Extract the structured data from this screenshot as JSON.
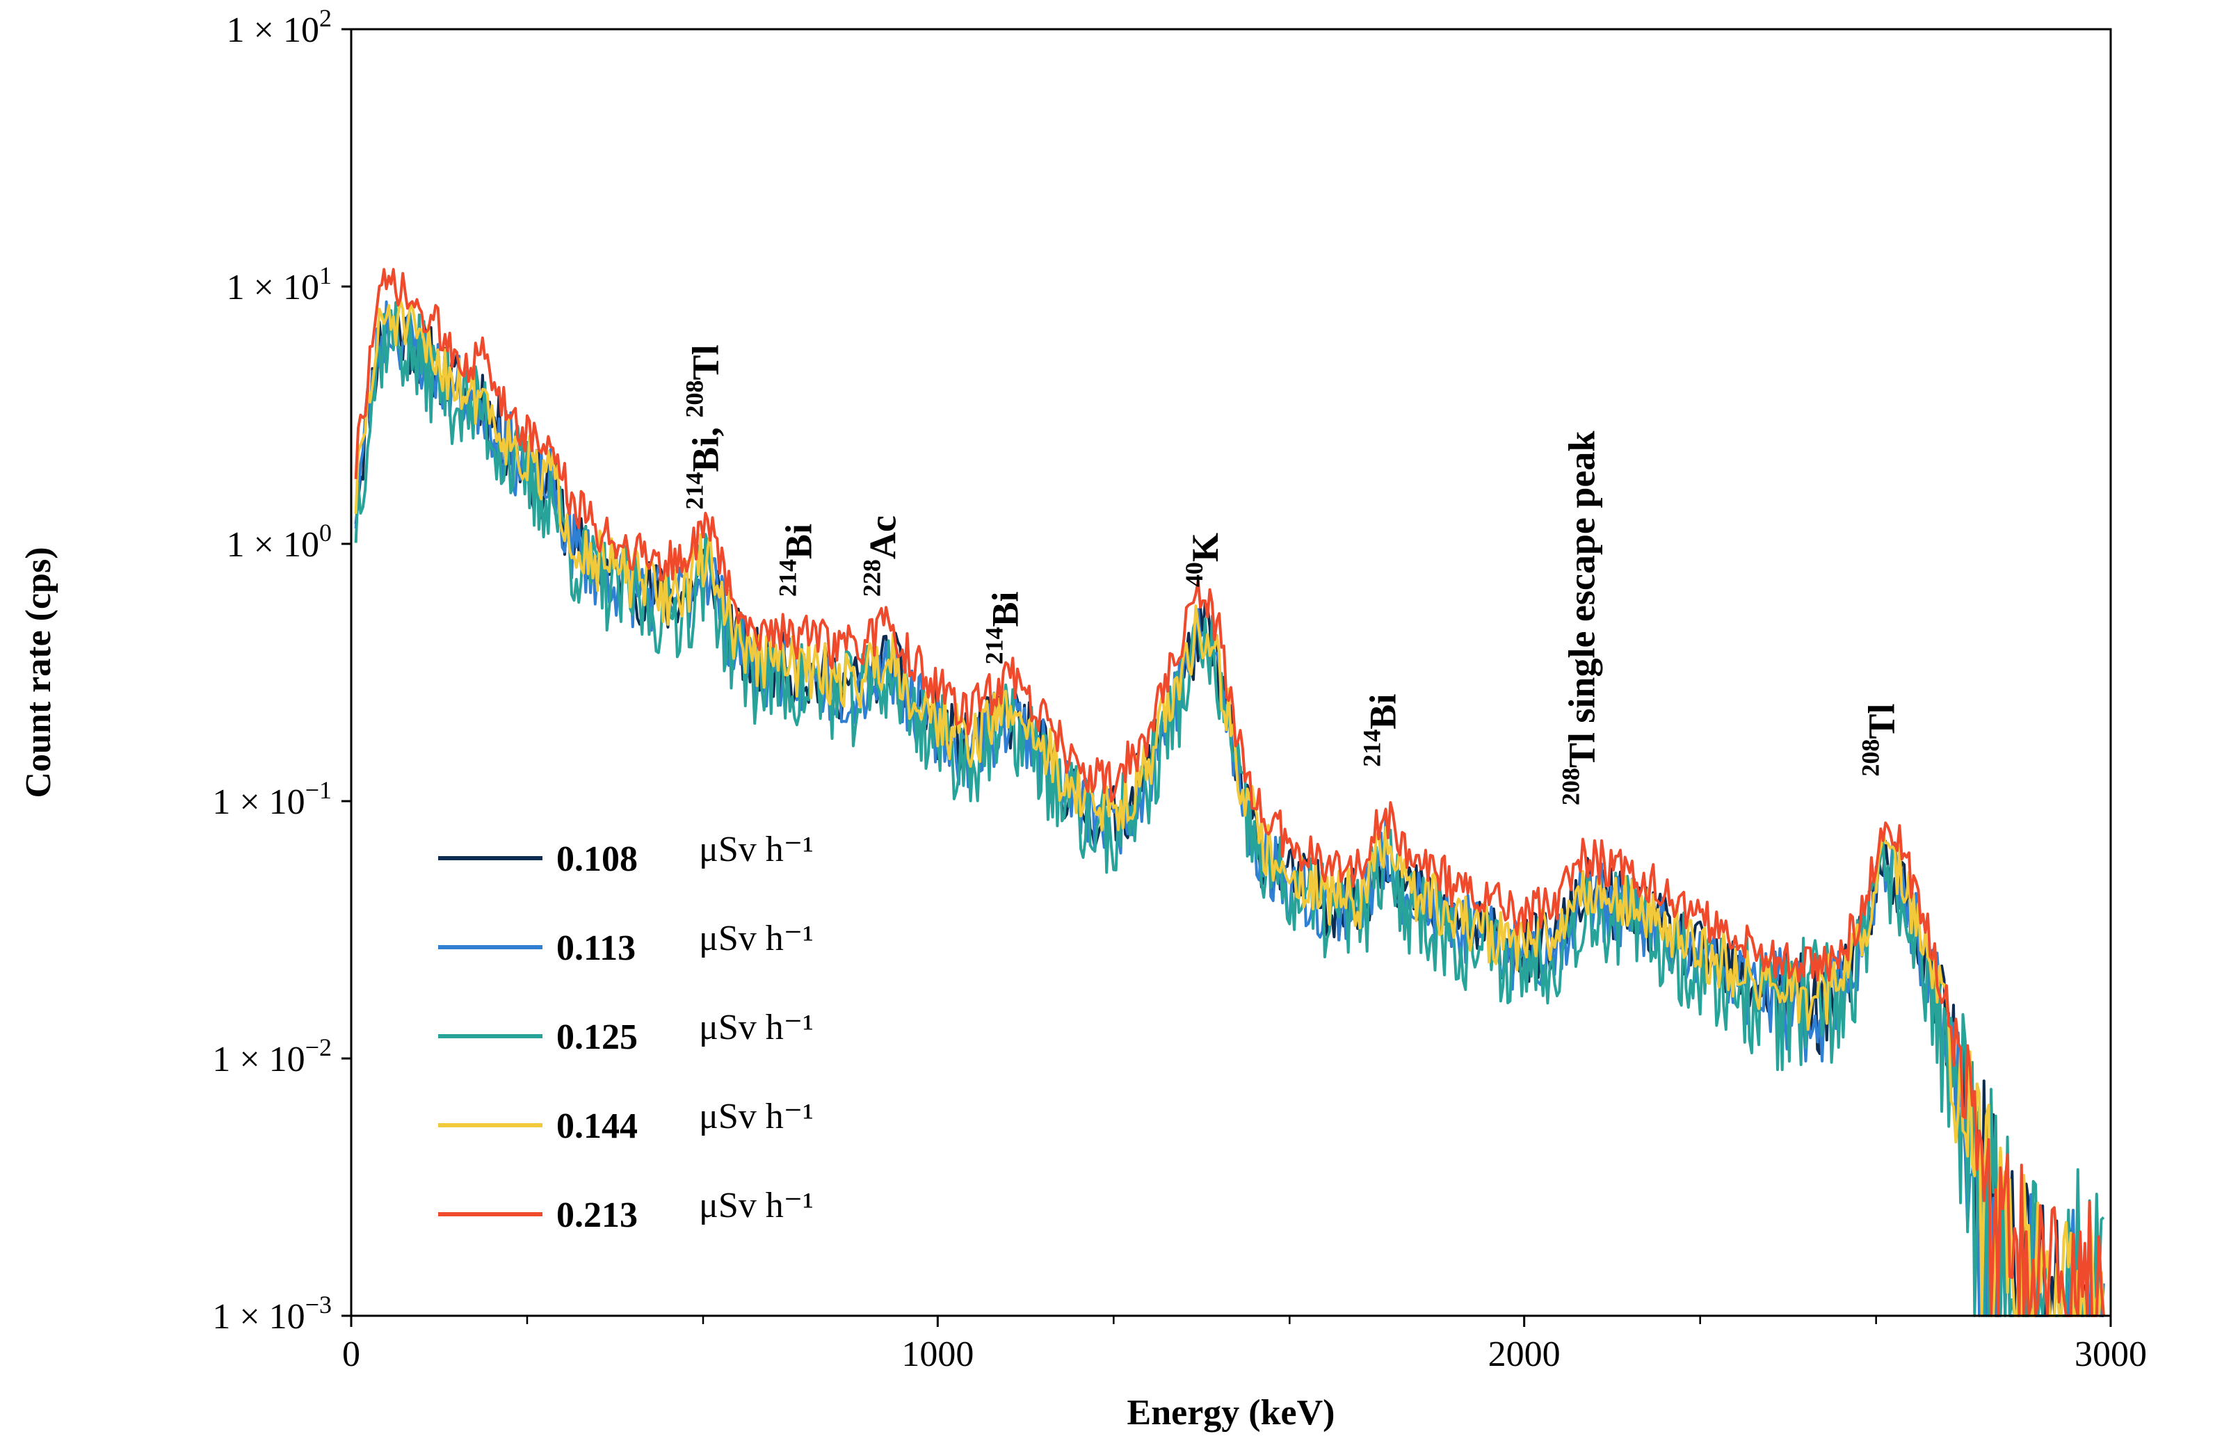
{
  "chart_data": {
    "type": "line",
    "xlabel": "Energy (keV)",
    "ylabel": "Count rate (cps)",
    "xlim": [
      0,
      3000
    ],
    "ylim": [
      0.001,
      100
    ],
    "yscale": "log",
    "grid": false,
    "legend_position": "bottom-left",
    "x_ticks": [
      {
        "value": 0,
        "label": "0"
      },
      {
        "value": 1000,
        "label": "1000"
      },
      {
        "value": 2000,
        "label": "2000"
      },
      {
        "value": 3000,
        "label": "3000"
      }
    ],
    "x_minor_ticks": [
      300,
      600,
      1300,
      1600,
      2300,
      2600
    ],
    "y_ticks": [
      {
        "value": 100,
        "base": "1 × 10",
        "exp": "2"
      },
      {
        "value": 10,
        "base": "1 × 10",
        "exp": "1"
      },
      {
        "value": 1,
        "base": "1 × 10",
        "exp": "0"
      },
      {
        "value": 0.1,
        "base": "1 × 10",
        "exp": "−1"
      },
      {
        "value": 0.01,
        "base": "1 × 10",
        "exp": "−2"
      },
      {
        "value": 0.001,
        "base": "1 × 10",
        "exp": "−3"
      }
    ],
    "unit": "μSv h⁻¹",
    "series": [
      {
        "name": "0.108",
        "color": "#0d2c52",
        "scale": 0.99,
        "noise": 0.14,
        "seed": 11
      },
      {
        "name": "0.113",
        "color": "#2f7fd3",
        "scale": 0.96,
        "noise": 0.15,
        "seed": 23
      },
      {
        "name": "0.125",
        "color": "#27a39a",
        "scale": 0.88,
        "noise": 0.19,
        "seed": 37
      },
      {
        "name": "0.144",
        "color": "#f2c93a",
        "scale": 1.05,
        "noise": 0.12,
        "seed": 51
      },
      {
        "name": "0.213",
        "color": "#ef4a2c",
        "scale": 1.38,
        "noise": 0.09,
        "seed": 73
      }
    ],
    "baseline_spectrum": [
      [
        0,
        0.9
      ],
      [
        10,
        1.6
      ],
      [
        30,
        3.5
      ],
      [
        50,
        6.5
      ],
      [
        60,
        7.5
      ],
      [
        80,
        7.0
      ],
      [
        120,
        5.6
      ],
      [
        160,
        4.6
      ],
      [
        190,
        3.9
      ],
      [
        210,
        3.6
      ],
      [
        222,
        4.0
      ],
      [
        235,
        3.2
      ],
      [
        260,
        2.6
      ],
      [
        290,
        2.1
      ],
      [
        320,
        1.7
      ],
      [
        340,
        1.85
      ],
      [
        355,
        1.4
      ],
      [
        380,
        1.0
      ],
      [
        420,
        0.82
      ],
      [
        480,
        0.7
      ],
      [
        540,
        0.6
      ],
      [
        580,
        0.68
      ],
      [
        600,
        0.85
      ],
      [
        615,
        0.82
      ],
      [
        640,
        0.5
      ],
      [
        680,
        0.35
      ],
      [
        740,
        0.33
      ],
      [
        800,
        0.3
      ],
      [
        860,
        0.28
      ],
      [
        900,
        0.33
      ],
      [
        920,
        0.36
      ],
      [
        950,
        0.26
      ],
      [
        1000,
        0.2
      ],
      [
        1050,
        0.16
      ],
      [
        1100,
        0.2
      ],
      [
        1130,
        0.22
      ],
      [
        1160,
        0.18
      ],
      [
        1200,
        0.13
      ],
      [
        1260,
        0.09
      ],
      [
        1300,
        0.085
      ],
      [
        1350,
        0.12
      ],
      [
        1400,
        0.24
      ],
      [
        1440,
        0.42
      ],
      [
        1460,
        0.45
      ],
      [
        1480,
        0.32
      ],
      [
        1510,
        0.13
      ],
      [
        1550,
        0.065
      ],
      [
        1600,
        0.05
      ],
      [
        1680,
        0.04
      ],
      [
        1720,
        0.04
      ],
      [
        1764,
        0.065
      ],
      [
        1800,
        0.045
      ],
      [
        1900,
        0.032
      ],
      [
        2000,
        0.026
      ],
      [
        2060,
        0.03
      ],
      [
        2103,
        0.045
      ],
      [
        2200,
        0.036
      ],
      [
        2300,
        0.025
      ],
      [
        2400,
        0.019
      ],
      [
        2500,
        0.016
      ],
      [
        2560,
        0.022
      ],
      [
        2600,
        0.045
      ],
      [
        2614,
        0.058
      ],
      [
        2650,
        0.045
      ],
      [
        2700,
        0.018
      ],
      [
        2750,
        0.006
      ],
      [
        2800,
        0.0025
      ],
      [
        2850,
        0.0015
      ],
      [
        2900,
        0.0012
      ],
      [
        2950,
        0.0011
      ],
      [
        3000,
        0.001
      ]
    ],
    "annotations": [
      {
        "energy": 609,
        "value": 1.2,
        "segments": [
          {
            "t": "214",
            "sup": true
          },
          {
            "t": "Bi, ",
            "sup": false
          },
          {
            "t": "208",
            "sup": true
          },
          {
            "t": "Tl",
            "sup": false
          }
        ]
      },
      {
        "energy": 768,
        "value": 0.55,
        "segments": [
          {
            "t": "214",
            "sup": true
          },
          {
            "t": "Bi",
            "sup": false
          }
        ]
      },
      {
        "energy": 911,
        "value": 0.55,
        "segments": [
          {
            "t": "228",
            "sup": true
          },
          {
            "t": "Ac",
            "sup": false
          }
        ]
      },
      {
        "energy": 1120,
        "value": 0.3,
        "segments": [
          {
            "t": "214",
            "sup": true
          },
          {
            "t": "Bi",
            "sup": false
          }
        ]
      },
      {
        "energy": 1461,
        "value": 0.6,
        "segments": [
          {
            "t": "40",
            "sup": true
          },
          {
            "t": "K",
            "sup": false
          }
        ]
      },
      {
        "energy": 1764,
        "value": 0.12,
        "segments": [
          {
            "t": "214",
            "sup": true
          },
          {
            "t": "Bi",
            "sup": false
          }
        ]
      },
      {
        "energy": 2103,
        "value": 0.085,
        "segments": [
          {
            "t": "208",
            "sup": true
          },
          {
            "t": "Tl single escape peak",
            "sup": false
          }
        ]
      },
      {
        "energy": 2614,
        "value": 0.11,
        "segments": [
          {
            "t": "208",
            "sup": true
          },
          {
            "t": "Tl",
            "sup": false
          }
        ]
      }
    ]
  }
}
